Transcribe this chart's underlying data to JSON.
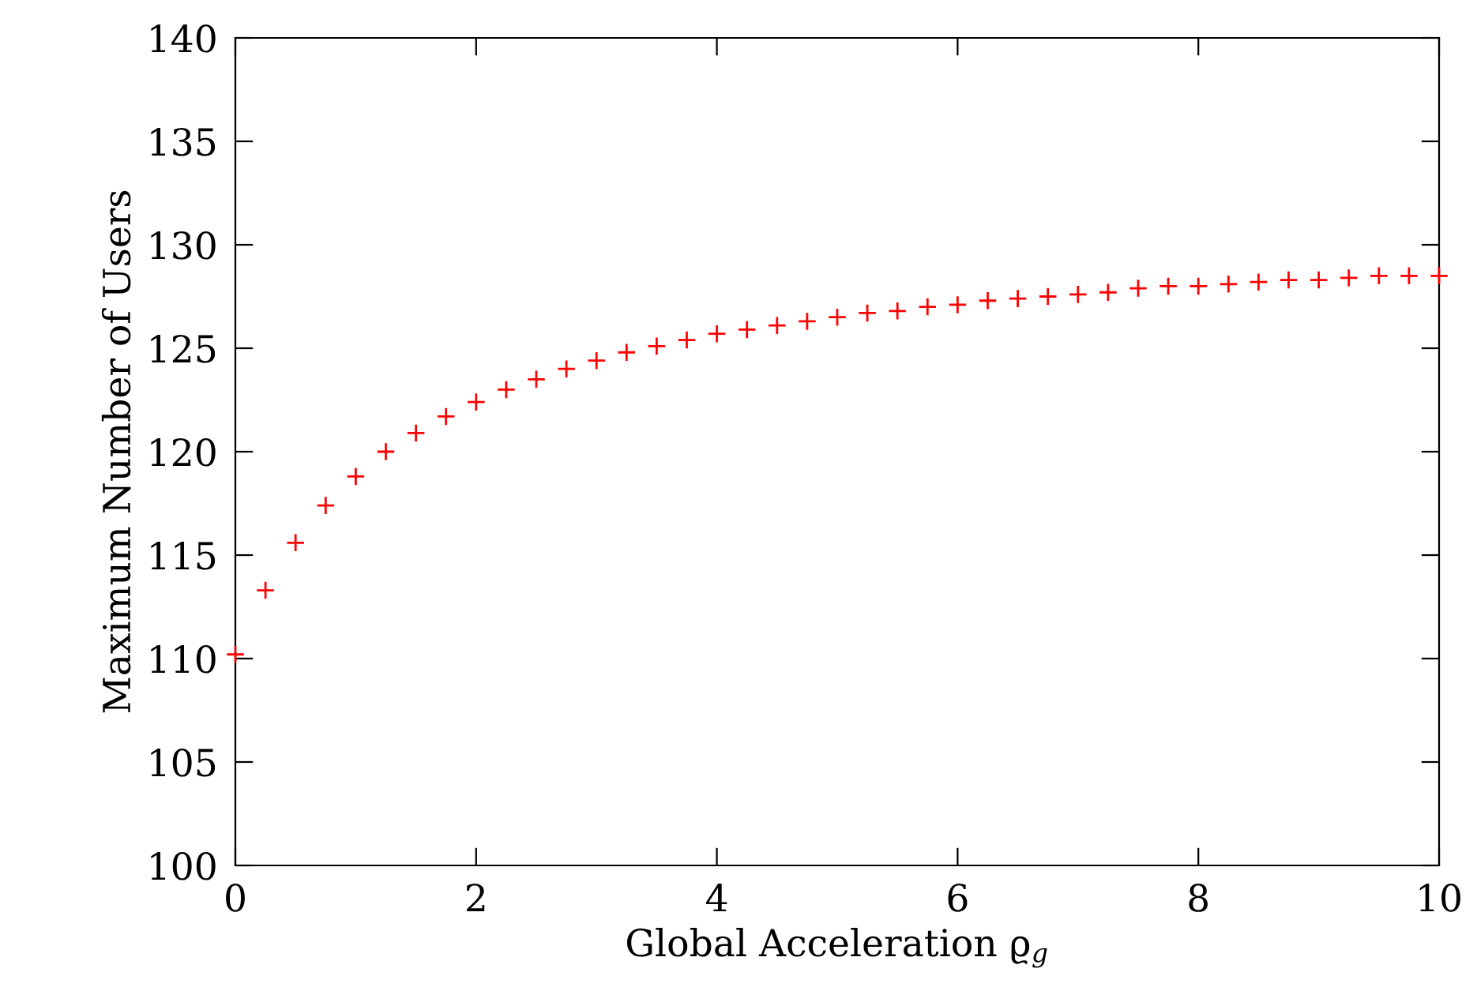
{
  "chart_data": {
    "type": "scatter",
    "xlabel": "Global Acceleration ϱ$_{g}$",
    "ylabel": "Maximum Number of Users",
    "x": [
      0,
      0.25,
      0.5,
      0.75,
      1,
      1.25,
      1.5,
      1.75,
      2,
      2.25,
      2.5,
      2.75,
      3,
      3.25,
      3.5,
      3.75,
      4,
      4.25,
      4.5,
      4.75,
      5,
      5.25,
      5.5,
      5.75,
      6,
      6.25,
      6.5,
      6.75,
      7,
      7.25,
      7.5,
      7.75,
      8,
      8.25,
      8.5,
      8.75,
      9,
      9.25,
      9.5,
      9.75,
      10
    ],
    "series": [
      {
        "color": "#ff0000",
        "values": [
          110.2,
          113.3,
          115.6,
          117.4,
          118.8,
          120.0,
          120.9,
          121.7,
          122.4,
          123.0,
          123.5,
          124.0,
          124.4,
          124.8,
          125.1,
          125.4,
          125.7,
          125.9,
          126.1,
          126.3,
          126.5,
          126.7,
          126.8,
          127.0,
          127.1,
          127.3,
          127.4,
          127.5,
          127.6,
          127.7,
          127.9,
          128.0,
          128.0,
          128.1,
          128.2,
          128.3,
          128.3,
          128.4,
          128.5,
          128.5,
          128.5
        ]
      }
    ],
    "xlim": [
      0,
      10
    ],
    "xticks": [
      0,
      2,
      4,
      6,
      8,
      10
    ],
    "ylim": [
      100,
      140
    ],
    "yticks": [
      100,
      105,
      110,
      115,
      120,
      125,
      130,
      135,
      140
    ],
    "marker": "cross",
    "grid": false,
    "legend": false
  }
}
